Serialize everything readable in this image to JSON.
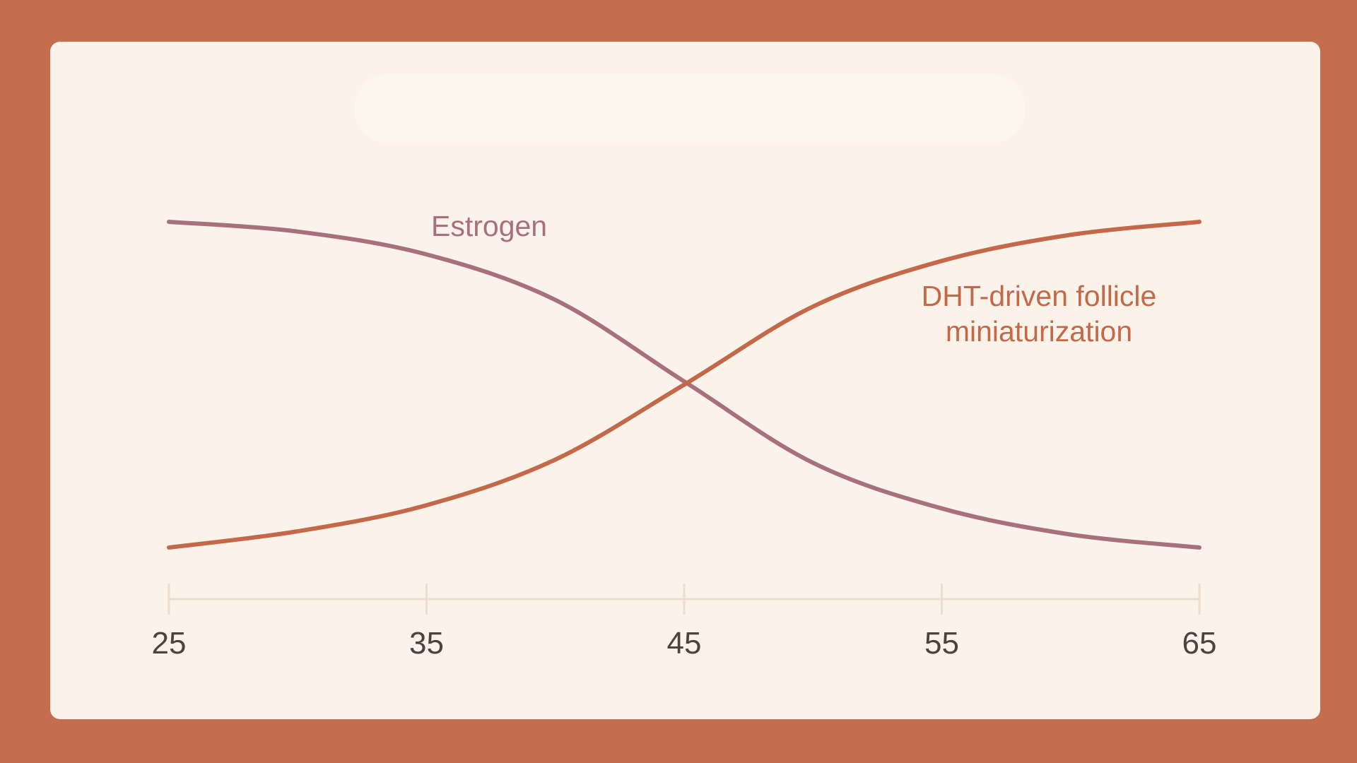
{
  "chart_data": {
    "type": "line",
    "title": "",
    "xlabel": "",
    "ylabel": "",
    "xlim": [
      25,
      65
    ],
    "ylim": [
      0,
      1
    ],
    "x_ticks": [
      "25",
      "35",
      "45",
      "55",
      "65"
    ],
    "grid": false,
    "series": [
      {
        "name": "Estrogen",
        "color": "#a8707c",
        "x": [
          25,
          30,
          35,
          40,
          45,
          50,
          55,
          60,
          65
        ],
        "y": [
          1.0,
          0.97,
          0.9,
          0.76,
          0.51,
          0.26,
          0.12,
          0.04,
          0.0
        ]
      },
      {
        "name": "DHT-driven follicle miniaturization",
        "label_lines": [
          "DHT-driven follicle",
          "miniaturization"
        ],
        "color": "#c4684a",
        "x": [
          25,
          30,
          35,
          40,
          45,
          50,
          55,
          60,
          65
        ],
        "y": [
          0.0,
          0.05,
          0.13,
          0.27,
          0.5,
          0.74,
          0.88,
          0.96,
          1.0
        ]
      }
    ]
  }
}
